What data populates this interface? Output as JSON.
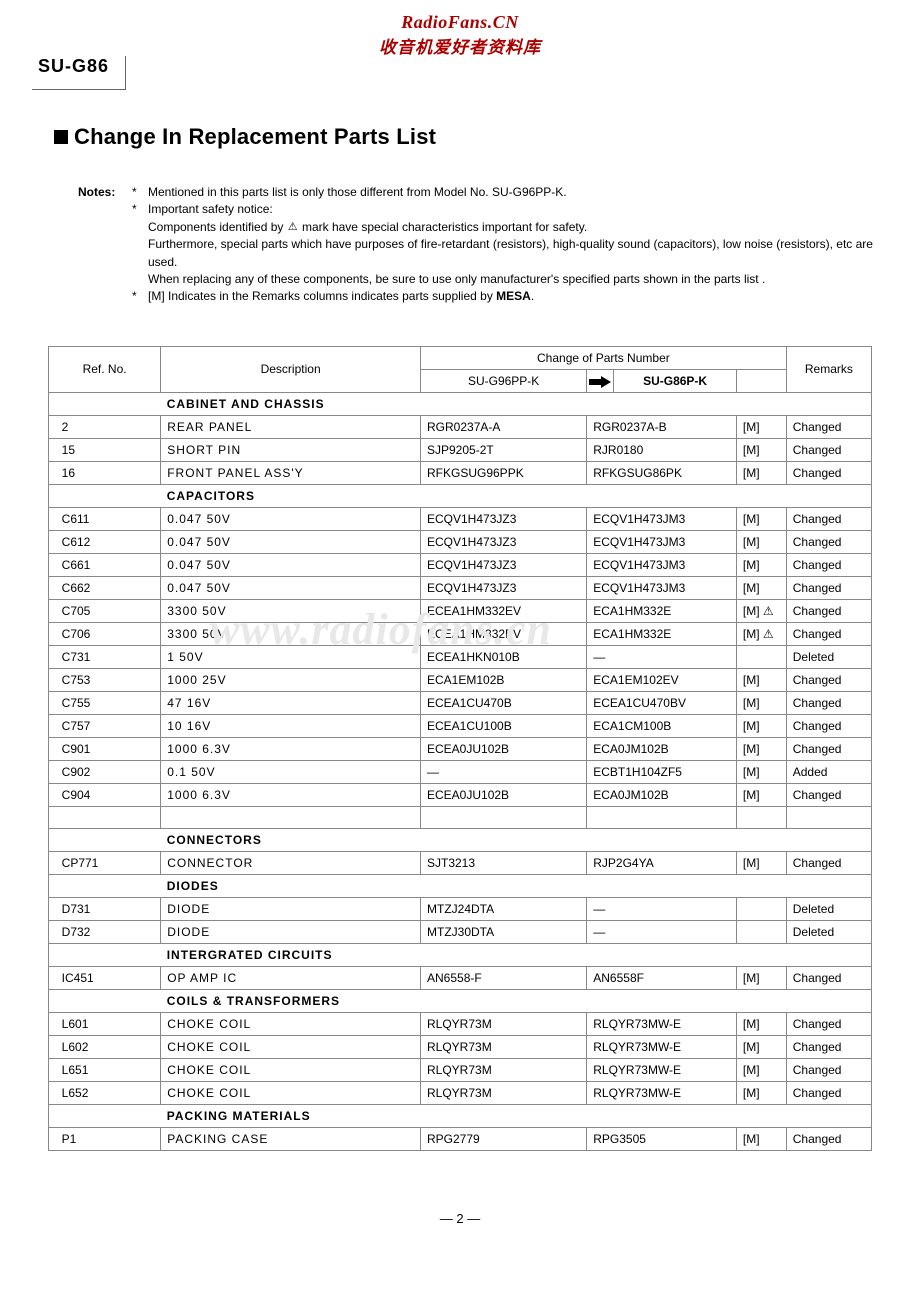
{
  "watermark": {
    "line1": "RadioFans.CN",
    "line2": "收音机爱好者资料库",
    "center": "www.radiofans.cn"
  },
  "model": "SU-G86",
  "section_title": "Change In Replacement Parts List",
  "notes": {
    "label": "Notes:",
    "items": [
      "Mentioned in this parts list is only those different from Model No. SU-G96PP-K.",
      "Important safety notice:",
      "Components identified by ",
      " mark have special characteristics important for safety.",
      "Furthermore, special parts which have purposes of fire-retardant (resistors), high-quality sound (capacitors), low noise (resistors), etc are used.",
      "When replacing any of these components, be sure to use only manufacturer's specified parts shown in the parts list .",
      "[M] Indicates in the Remarks columns indicates parts supplied by MESA."
    ],
    "mesa": "MESA"
  },
  "table": {
    "headers": {
      "ref": "Ref. No.",
      "desc": "Description",
      "change_group": "Change of Parts Number",
      "p1": "SU-G96PP-K",
      "p2": "SU-G86P-K",
      "remarks": "Remarks"
    },
    "sections": [
      {
        "title": "CABINET  AND  CHASSIS",
        "rows": [
          {
            "ref": "2",
            "desc": "REAR   PANEL",
            "p1": "RGR0237A-A",
            "p2": "RGR0237A-B",
            "m": "[M]",
            "rem": "Changed"
          },
          {
            "ref": "15",
            "desc": "SHORT   PIN",
            "p1": "SJP9205-2T",
            "p2": "RJR0180",
            "m": "[M]",
            "rem": "Changed"
          },
          {
            "ref": "16",
            "desc": "FRONT   PANEL   ASS'Y",
            "p1": "RFKGSUG96PPK",
            "p2": "RFKGSUG86PK",
            "m": "[M]",
            "rem": "Changed"
          }
        ]
      },
      {
        "title": "CAPACITORS",
        "rows": [
          {
            "ref": "C611",
            "desc": "0.047     50V",
            "p1": "ECQV1H473JZ3",
            "p2": "ECQV1H473JM3",
            "m": "[M]",
            "rem": "Changed"
          },
          {
            "ref": "C612",
            "desc": "0.047     50V",
            "p1": "ECQV1H473JZ3",
            "p2": "ECQV1H473JM3",
            "m": "[M]",
            "rem": "Changed"
          },
          {
            "ref": "C661",
            "desc": "0.047     50V",
            "p1": "ECQV1H473JZ3",
            "p2": "ECQV1H473JM3",
            "m": "[M]",
            "rem": "Changed"
          },
          {
            "ref": "C662",
            "desc": "0.047     50V",
            "p1": "ECQV1H473JZ3",
            "p2": "ECQV1H473JM3",
            "m": "[M]",
            "rem": "Changed"
          },
          {
            "ref": "C705",
            "desc": "3300       50V",
            "p1": "ECEA1HM332EV",
            "p2": "ECA1HM332E",
            "m": "[M] ⚠",
            "rem": "Changed"
          },
          {
            "ref": "C706",
            "desc": "3300       50V",
            "p1": "ECEA1HM332EV",
            "p2": "ECA1HM332E",
            "m": "[M] ⚠",
            "rem": "Changed"
          },
          {
            "ref": "C731",
            "desc": "1             50V",
            "p1": "ECEA1HKN010B",
            "p2": "—",
            "m": "",
            "rem": "Deleted"
          },
          {
            "ref": "C753",
            "desc": "1000       25V",
            "p1": "ECA1EM102B",
            "p2": "ECA1EM102EV",
            "m": "[M]",
            "rem": "Changed"
          },
          {
            "ref": "C755",
            "desc": "47           16V",
            "p1": "ECEA1CU470B",
            "p2": "ECEA1CU470BV",
            "m": "[M]",
            "rem": "Changed"
          },
          {
            "ref": "C757",
            "desc": "10           16V",
            "p1": "ECEA1CU100B",
            "p2": "ECA1CM100B",
            "m": "[M]",
            "rem": "Changed"
          },
          {
            "ref": "C901",
            "desc": "1000       6.3V",
            "p1": "ECEA0JU102B",
            "p2": "ECA0JM102B",
            "m": "[M]",
            "rem": "Changed"
          },
          {
            "ref": "C902",
            "desc": "0.1          50V",
            "p1": "—",
            "p2": "ECBT1H104ZF5",
            "m": "[M]",
            "rem": "Added"
          },
          {
            "ref": "C904",
            "desc": "1000       6.3V",
            "p1": "ECEA0JU102B",
            "p2": "ECA0JM102B",
            "m": "[M]",
            "rem": "Changed"
          }
        ],
        "trailing_empty": true
      },
      {
        "title": "CONNECTORS",
        "rows": [
          {
            "ref": "CP771",
            "desc": "CONNECTOR",
            "p1": "SJT3213",
            "p2": "RJP2G4YA",
            "m": "[M]",
            "rem": "Changed"
          }
        ]
      },
      {
        "title": "DIODES",
        "rows": [
          {
            "ref": "D731",
            "desc": "DIODE",
            "p1": "MTZJ24DTA",
            "p2": "—",
            "m": "",
            "rem": "Deleted"
          },
          {
            "ref": "D732",
            "desc": "DIODE",
            "p1": "MTZJ30DTA",
            "p2": "—",
            "m": "",
            "rem": "Deleted"
          }
        ]
      },
      {
        "title": "INTERGRATED   CIRCUITS",
        "rows": [
          {
            "ref": "IC451",
            "desc": "OP   AMP    IC",
            "p1": "AN6558-F",
            "p2": "AN6558F",
            "m": "[M]",
            "rem": "Changed"
          }
        ]
      },
      {
        "title": "COILS   &  TRANSFORMERS",
        "rows": [
          {
            "ref": "L601",
            "desc": "CHOKE   COIL",
            "p1": "RLQYR73M",
            "p2": "RLQYR73MW-E",
            "m": "[M]",
            "rem": "Changed"
          },
          {
            "ref": "L602",
            "desc": "CHOKE   COIL",
            "p1": "RLQYR73M",
            "p2": "RLQYR73MW-E",
            "m": "[M]",
            "rem": "Changed"
          },
          {
            "ref": "L651",
            "desc": "CHOKE   COIL",
            "p1": "RLQYR73M",
            "p2": "RLQYR73MW-E",
            "m": "[M]",
            "rem": "Changed"
          },
          {
            "ref": "L652",
            "desc": "CHOKE   COIL",
            "p1": "RLQYR73M",
            "p2": "RLQYR73MW-E",
            "m": "[M]",
            "rem": "Changed"
          }
        ]
      },
      {
        "title": "PACKING  MATERIALS",
        "rows": [
          {
            "ref": "P1",
            "desc": "PACKING   CASE",
            "p1": "RPG2779",
            "p2": "RPG3505",
            "m": "[M]",
            "rem": "Changed"
          }
        ]
      }
    ]
  },
  "page_number": "— 2 —"
}
